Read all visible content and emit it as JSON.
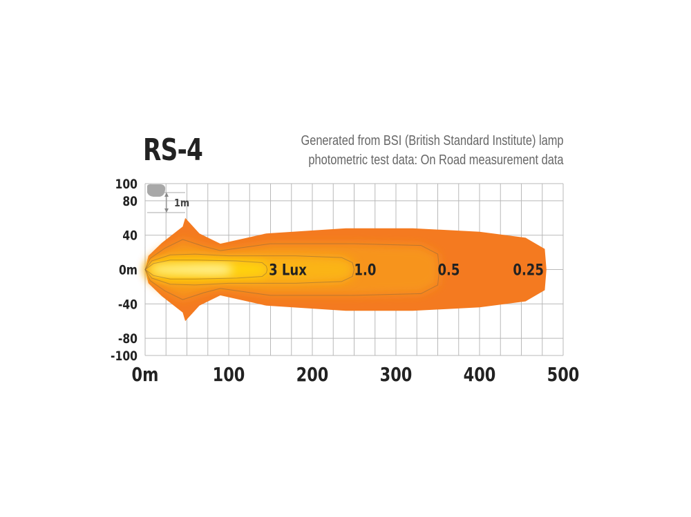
{
  "title": "RS-4",
  "subtitle_lines": [
    "Generated from BSI (British Standard Institute) lamp",
    "photometric test data: On Road measurement data"
  ],
  "colors": {
    "grid": "#b8b8b8",
    "text": "#222222",
    "lux_025": "#f47a20",
    "lux_05": "#f7941d",
    "lux_10": "#fbb416",
    "lux_3": "#ffd20a",
    "core": "#fff3a0",
    "scale_icon": "#a8a8a8"
  },
  "chart_data": {
    "type": "heatmap",
    "x_ticks": [
      "0m",
      "100",
      "200",
      "300",
      "400",
      "500"
    ],
    "x_tick_values": [
      0,
      100,
      200,
      300,
      400,
      500
    ],
    "y_ticks": [
      "100",
      "80",
      "40",
      "0m",
      "-40",
      "-80",
      "-100"
    ],
    "y_tick_values": [
      100,
      80,
      40,
      0,
      -40,
      -80,
      -100
    ],
    "xlim": [
      0,
      500
    ],
    "ylim": [
      -100,
      100
    ],
    "grid": true,
    "scale_label": "1m",
    "isolux_labels": [
      {
        "text": "3 Lux",
        "x": 148,
        "y": 0
      },
      {
        "text": "1.0",
        "x": 250,
        "y": 0
      },
      {
        "text": "0.5",
        "x": 350,
        "y": 0
      },
      {
        "text": "0.25",
        "x": 440,
        "y": 0
      }
    ],
    "contours": [
      {
        "level": "0.25",
        "color_key": "lux_025",
        "points": [
          [
            0,
            0
          ],
          [
            4,
            16
          ],
          [
            20,
            31
          ],
          [
            45,
            50
          ],
          [
            48,
            60
          ],
          [
            65,
            42
          ],
          [
            90,
            30
          ],
          [
            145,
            42
          ],
          [
            240,
            48
          ],
          [
            320,
            48
          ],
          [
            400,
            44
          ],
          [
            455,
            37
          ],
          [
            478,
            24
          ],
          [
            480,
            0
          ],
          [
            478,
            -24
          ],
          [
            455,
            -37
          ],
          [
            400,
            -44
          ],
          [
            320,
            -48
          ],
          [
            240,
            -48
          ],
          [
            145,
            -42
          ],
          [
            90,
            -30
          ],
          [
            65,
            -42
          ],
          [
            48,
            -60
          ],
          [
            45,
            -50
          ],
          [
            20,
            -31
          ],
          [
            4,
            -16
          ]
        ]
      },
      {
        "level": "0.5",
        "color_key": "lux_05",
        "points": [
          [
            0,
            0
          ],
          [
            6,
            13
          ],
          [
            24,
            25
          ],
          [
            45,
            35
          ],
          [
            70,
            27
          ],
          [
            90,
            22
          ],
          [
            150,
            30
          ],
          [
            250,
            30
          ],
          [
            330,
            28
          ],
          [
            350,
            18
          ],
          [
            352,
            0
          ],
          [
            350,
            -18
          ],
          [
            330,
            -28
          ],
          [
            250,
            -30
          ],
          [
            150,
            -30
          ],
          [
            90,
            -22
          ],
          [
            70,
            -27
          ],
          [
            45,
            -35
          ],
          [
            24,
            -25
          ],
          [
            6,
            -13
          ]
        ]
      },
      {
        "level": "1.0",
        "color_key": "lux_10",
        "points": [
          [
            0,
            0
          ],
          [
            8,
            10
          ],
          [
            30,
            17
          ],
          [
            60,
            18
          ],
          [
            100,
            16
          ],
          [
            180,
            16
          ],
          [
            235,
            14
          ],
          [
            248,
            8
          ],
          [
            250,
            0
          ],
          [
            248,
            -8
          ],
          [
            235,
            -14
          ],
          [
            180,
            -16
          ],
          [
            100,
            -16
          ],
          [
            60,
            -18
          ],
          [
            30,
            -17
          ],
          [
            8,
            -10
          ]
        ]
      },
      {
        "level": "3",
        "color_key": "lux_3",
        "points": [
          [
            0,
            0
          ],
          [
            10,
            7
          ],
          [
            30,
            11
          ],
          [
            60,
            11
          ],
          [
            110,
            10
          ],
          [
            140,
            8
          ],
          [
            145,
            4
          ],
          [
            146,
            0
          ],
          [
            145,
            -4
          ],
          [
            140,
            -8
          ],
          [
            110,
            -10
          ],
          [
            60,
            -11
          ],
          [
            30,
            -11
          ],
          [
            10,
            -7
          ]
        ]
      },
      {
        "level": "core",
        "color_key": "core",
        "points": [
          [
            4,
            0
          ],
          [
            15,
            4
          ],
          [
            40,
            5
          ],
          [
            80,
            6
          ],
          [
            100,
            5
          ],
          [
            105,
            0
          ],
          [
            100,
            -5
          ],
          [
            80,
            -6
          ],
          [
            40,
            -5
          ],
          [
            15,
            -4
          ]
        ]
      }
    ]
  }
}
